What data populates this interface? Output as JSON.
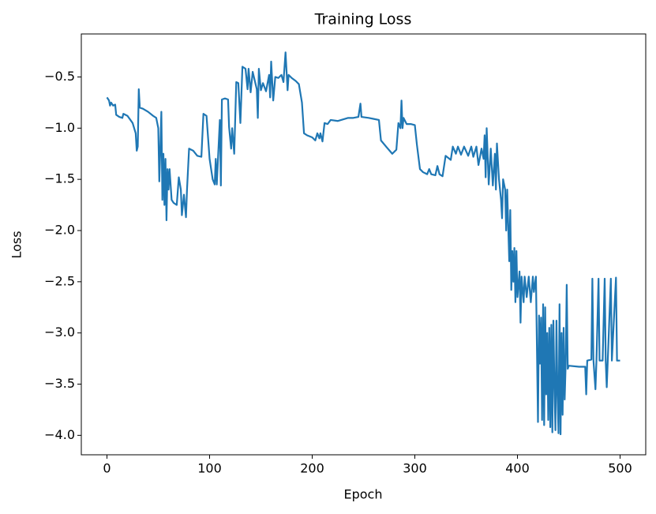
{
  "chart_data": {
    "type": "line",
    "title": "Training Loss",
    "xlabel": "Epoch",
    "ylabel": "Loss",
    "color": "#1f77b4",
    "xlim": [
      -25,
      525
    ],
    "ylim": [
      -4.19,
      -0.08
    ],
    "xticks": [
      0,
      100,
      200,
      300,
      400,
      500
    ],
    "yticks": [
      {
        "value": -4.0,
        "label": "−4.0"
      },
      {
        "value": -3.5,
        "label": "−3.5"
      },
      {
        "value": -3.0,
        "label": "−3.0"
      },
      {
        "value": -2.5,
        "label": "−2.5"
      },
      {
        "value": -2.0,
        "label": "−2.0"
      },
      {
        "value": -1.5,
        "label": "−1.5"
      },
      {
        "value": -1.0,
        "label": "−1.0"
      },
      {
        "value": -0.5,
        "label": "−0.5"
      }
    ],
    "x": [
      0,
      2,
      3,
      4,
      6,
      8,
      9,
      12,
      15,
      16,
      20,
      25,
      28,
      29,
      30,
      31,
      32,
      35,
      40,
      45,
      48,
      50,
      51,
      52,
      53,
      54,
      55,
      56,
      57,
      58,
      59,
      60,
      61,
      63,
      65,
      68,
      70,
      72,
      73,
      75,
      77,
      78,
      80,
      84,
      88,
      92,
      94,
      97,
      100,
      103,
      105,
      106,
      107,
      110,
      111,
      112,
      115,
      118,
      119,
      121,
      122,
      124,
      126,
      128,
      130,
      132,
      135,
      137,
      138,
      140,
      142,
      146,
      147,
      148,
      150,
      152,
      155,
      158,
      159,
      160,
      162,
      164,
      167,
      170,
      172,
      174,
      176,
      177,
      180,
      184,
      187,
      190,
      192,
      195,
      200,
      203,
      205,
      207,
      208,
      210,
      212,
      215,
      218,
      225,
      235,
      240,
      245,
      247,
      248,
      255,
      260,
      265,
      267,
      272,
      278,
      282,
      284,
      286,
      287,
      288,
      289,
      292,
      296,
      300,
      302,
      305,
      308,
      312,
      314,
      316,
      320,
      322,
      324,
      327,
      330,
      335,
      337,
      340,
      342,
      345,
      348,
      352,
      355,
      357,
      360,
      362,
      365,
      367,
      368,
      369,
      370,
      372,
      374,
      376,
      378,
      379,
      380,
      382,
      384,
      385,
      386,
      388,
      389,
      390,
      392,
      393,
      394,
      395,
      396,
      397,
      398,
      399,
      400,
      402,
      403,
      404,
      406,
      407,
      409,
      411,
      413,
      415,
      416,
      418,
      420,
      421,
      422,
      423,
      424,
      425,
      426,
      427,
      428,
      429,
      430,
      431,
      432,
      433,
      434,
      435,
      436,
      437,
      438,
      439,
      440,
      441,
      442,
      443,
      444,
      445,
      446,
      447,
      448,
      449,
      450,
      460,
      466,
      467,
      468,
      472,
      473,
      474,
      476,
      477,
      479,
      480,
      483,
      485,
      486,
      487,
      488,
      491,
      492,
      496,
      497,
      500
    ],
    "values": [
      -0.7,
      -0.73,
      -0.78,
      -0.75,
      -0.78,
      -0.77,
      -0.87,
      -0.89,
      -0.9,
      -0.86,
      -0.88,
      -0.95,
      -1.05,
      -1.22,
      -1.18,
      -0.62,
      -0.8,
      -0.81,
      -0.84,
      -0.88,
      -0.9,
      -1.0,
      -1.52,
      -1.2,
      -0.84,
      -1.7,
      -1.25,
      -1.75,
      -1.3,
      -1.9,
      -1.4,
      -1.6,
      -1.4,
      -1.7,
      -1.73,
      -1.75,
      -1.48,
      -1.6,
      -1.85,
      -1.65,
      -1.87,
      -1.6,
      -1.2,
      -1.22,
      -1.27,
      -1.28,
      -0.86,
      -0.88,
      -1.3,
      -1.5,
      -1.55,
      -1.3,
      -1.55,
      -0.92,
      -1.56,
      -0.72,
      -0.71,
      -0.72,
      -0.99,
      -1.2,
      -1.0,
      -1.25,
      -0.55,
      -0.56,
      -0.95,
      -0.4,
      -0.42,
      -0.62,
      -0.42,
      -0.65,
      -0.45,
      -0.62,
      -0.9,
      -0.42,
      -0.63,
      -0.56,
      -0.64,
      -0.48,
      -0.7,
      -0.35,
      -0.73,
      -0.5,
      -0.51,
      -0.48,
      -0.55,
      -0.26,
      -0.63,
      -0.48,
      -0.51,
      -0.54,
      -0.57,
      -0.75,
      -1.05,
      -1.07,
      -1.09,
      -1.12,
      -1.05,
      -1.1,
      -1.05,
      -1.13,
      -0.95,
      -0.96,
      -0.92,
      -0.93,
      -0.9,
      -0.9,
      -0.89,
      -0.76,
      -0.89,
      -0.9,
      -0.91,
      -0.92,
      -1.12,
      -1.18,
      -1.25,
      -1.21,
      -0.95,
      -1.0,
      -0.73,
      -1.0,
      -0.9,
      -0.96,
      -0.96,
      -0.97,
      -1.16,
      -1.4,
      -1.43,
      -1.45,
      -1.4,
      -1.45,
      -1.46,
      -1.37,
      -1.45,
      -1.47,
      -1.27,
      -1.31,
      -1.18,
      -1.25,
      -1.18,
      -1.26,
      -1.18,
      -1.27,
      -1.18,
      -1.28,
      -1.18,
      -1.36,
      -1.2,
      -1.3,
      -1.07,
      -1.48,
      -1.0,
      -1.55,
      -1.2,
      -1.56,
      -1.25,
      -1.6,
      -1.15,
      -1.5,
      -1.7,
      -1.88,
      -1.5,
      -1.6,
      -2.0,
      -1.6,
      -2.3,
      -1.8,
      -2.58,
      -2.2,
      -2.5,
      -2.17,
      -2.7,
      -2.2,
      -2.65,
      -2.4,
      -2.9,
      -2.45,
      -2.7,
      -2.45,
      -2.65,
      -2.45,
      -2.7,
      -2.45,
      -2.6,
      -2.45,
      -3.87,
      -2.83,
      -3.3,
      -2.85,
      -3.85,
      -2.72,
      -3.9,
      -2.75,
      -3.6,
      -3.0,
      -3.85,
      -2.95,
      -3.92,
      -2.92,
      -3.97,
      -2.88,
      -3.5,
      -3.95,
      -2.88,
      -3.6,
      -3.98,
      -2.72,
      -3.99,
      -3.0,
      -3.8,
      -2.95,
      -3.65,
      -3.3,
      -2.53,
      -3.35,
      -3.32,
      -3.33,
      -3.33,
      -3.6,
      -3.27,
      -3.26,
      -2.47,
      -3.26,
      -3.55,
      -3.26,
      -2.47,
      -3.27,
      -3.27,
      -2.47,
      -3.27,
      -3.53,
      -3.27,
      -2.47,
      -3.27,
      -2.46,
      -3.27,
      -3.27
    ]
  }
}
